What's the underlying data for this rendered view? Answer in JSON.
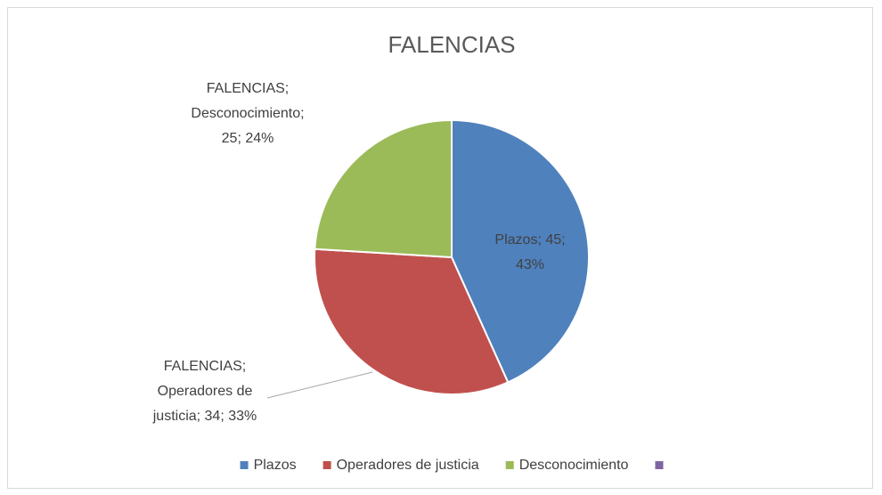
{
  "chart_data": {
    "type": "pie",
    "title": "FALENCIAS",
    "categories": [
      "Plazos",
      "Operadores de justicia",
      "Desconocimiento",
      null
    ],
    "values": [
      45,
      34,
      25,
      null
    ],
    "value_labels": [
      [
        "Plazos; 45;",
        "43%"
      ],
      [
        "FALENCIAS;",
        "Operadores de",
        "justicia; 34; 33%"
      ],
      [
        "FALENCIAS;",
        "Desconocimiento;",
        "25; 24%"
      ],
      null
    ],
    "colors": [
      "#4f81bd",
      "#c0504d",
      "#9bbb59",
      "#8064a2"
    ],
    "legend": "bottom"
  }
}
